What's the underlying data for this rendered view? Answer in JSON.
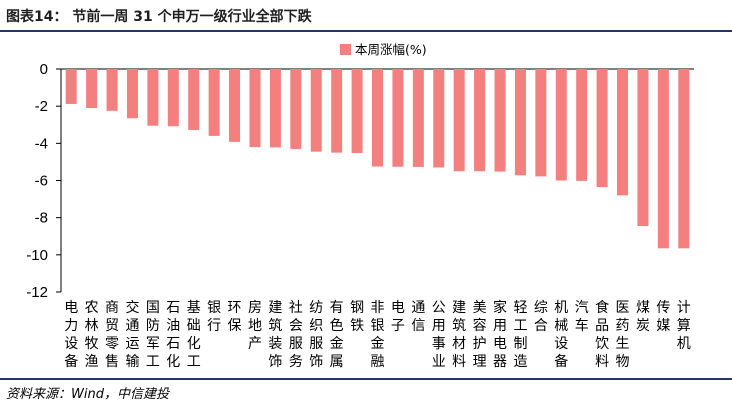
{
  "header": {
    "title": "图表14：  节前一周 31 个申万一级行业全部下跌"
  },
  "footer": {
    "source": "资料来源：Wind，中信建投"
  },
  "chart_data": {
    "type": "bar",
    "title": "",
    "xlabel": "",
    "ylabel": "",
    "ylim": [
      -12,
      0
    ],
    "yticks": [
      0,
      -2,
      -4,
      -6,
      -8,
      -10,
      -12
    ],
    "grid": false,
    "legend_position": "top-right",
    "bar_color": "#f47f7f",
    "categories": [
      "电力设备",
      "农林牧渔",
      "商贸零售",
      "交通运输",
      "国防军工",
      "石油石化",
      "基础化工",
      "银行",
      "环保",
      "房地产",
      "建筑装饰",
      "社会服务",
      "纺织服饰",
      "有色金属",
      "钢铁",
      "非银金融",
      "电子",
      "通信",
      "公用事业",
      "建筑材料",
      "美容护理",
      "家用电器",
      "轻工制造",
      "综合",
      "机械设备",
      "汽车",
      "食品饮料",
      "医药生物",
      "煤炭",
      "传媒",
      "计算机"
    ],
    "series": [
      {
        "name": "本周涨幅(%)",
        "values": [
          -1.88,
          -2.1,
          -2.25,
          -2.65,
          -3.05,
          -3.08,
          -3.28,
          -3.6,
          -3.92,
          -4.2,
          -4.22,
          -4.3,
          -4.45,
          -4.5,
          -4.52,
          -5.25,
          -5.26,
          -5.27,
          -5.3,
          -5.5,
          -5.5,
          -5.52,
          -5.72,
          -5.78,
          -6.0,
          -6.02,
          -6.35,
          -6.8,
          -8.45,
          -9.65,
          -9.65
        ]
      }
    ]
  }
}
